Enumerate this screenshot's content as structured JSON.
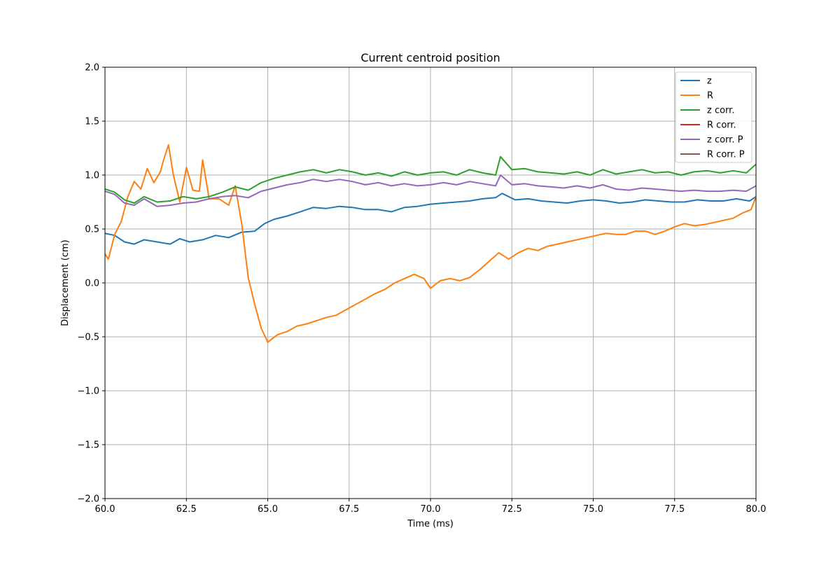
{
  "chart_data": {
    "type": "line",
    "title": "Current centroid position",
    "xlabel": "Time (ms)",
    "ylabel": "Displacement (cm)",
    "xlim": [
      60,
      80
    ],
    "ylim": [
      -2,
      2
    ],
    "x_ticks": [
      60,
      62.5,
      65,
      67.5,
      70,
      72.5,
      75,
      77.5,
      80
    ],
    "x_tick_labels": [
      "60.0",
      "62.5",
      "65.0",
      "67.5",
      "70.0",
      "72.5",
      "75.0",
      "77.5",
      "80.0"
    ],
    "y_ticks": [
      -2,
      -1.5,
      -1,
      -0.5,
      0,
      0.5,
      1,
      1.5,
      2
    ],
    "y_tick_labels": [
      "−2.0",
      "−1.5",
      "−1.0",
      "−0.5",
      "0.0",
      "0.5",
      "1.0",
      "1.5",
      "2.0"
    ],
    "grid": true,
    "legend_position": "top-right",
    "series": [
      {
        "name": "z",
        "color": "#1f77b4",
        "points": [
          [
            60,
            0.46
          ],
          [
            60.3,
            0.44
          ],
          [
            60.6,
            0.38
          ],
          [
            60.9,
            0.36
          ],
          [
            61.2,
            0.4
          ],
          [
            61.6,
            0.38
          ],
          [
            62,
            0.36
          ],
          [
            62.3,
            0.41
          ],
          [
            62.6,
            0.38
          ],
          [
            63,
            0.4
          ],
          [
            63.4,
            0.44
          ],
          [
            63.8,
            0.42
          ],
          [
            64.2,
            0.47
          ],
          [
            64.6,
            0.48
          ],
          [
            64.9,
            0.55
          ],
          [
            65.2,
            0.59
          ],
          [
            65.6,
            0.62
          ],
          [
            66,
            0.66
          ],
          [
            66.4,
            0.7
          ],
          [
            66.8,
            0.69
          ],
          [
            67.2,
            0.71
          ],
          [
            67.6,
            0.7
          ],
          [
            68,
            0.68
          ],
          [
            68.4,
            0.68
          ],
          [
            68.8,
            0.66
          ],
          [
            69.2,
            0.7
          ],
          [
            69.6,
            0.71
          ],
          [
            70,
            0.73
          ],
          [
            70.4,
            0.74
          ],
          [
            70.8,
            0.75
          ],
          [
            71.2,
            0.76
          ],
          [
            71.6,
            0.78
          ],
          [
            72,
            0.79
          ],
          [
            72.2,
            0.83
          ],
          [
            72.6,
            0.77
          ],
          [
            73,
            0.78
          ],
          [
            73.4,
            0.76
          ],
          [
            73.8,
            0.75
          ],
          [
            74.2,
            0.74
          ],
          [
            74.6,
            0.76
          ],
          [
            75,
            0.77
          ],
          [
            75.4,
            0.76
          ],
          [
            75.8,
            0.74
          ],
          [
            76.2,
            0.75
          ],
          [
            76.6,
            0.77
          ],
          [
            77,
            0.76
          ],
          [
            77.4,
            0.75
          ],
          [
            77.8,
            0.75
          ],
          [
            78.2,
            0.77
          ],
          [
            78.6,
            0.76
          ],
          [
            79,
            0.76
          ],
          [
            79.4,
            0.78
          ],
          [
            79.8,
            0.76
          ],
          [
            80,
            0.8
          ]
        ]
      },
      {
        "name": "R",
        "color": "#ff7f0e",
        "points": [
          [
            60,
            0.27
          ],
          [
            60.1,
            0.22
          ],
          [
            60.3,
            0.45
          ],
          [
            60.5,
            0.57
          ],
          [
            60.7,
            0.8
          ],
          [
            60.9,
            0.94
          ],
          [
            61.1,
            0.87
          ],
          [
            61.3,
            1.06
          ],
          [
            61.5,
            0.93
          ],
          [
            61.7,
            1.03
          ],
          [
            61.8,
            1.14
          ],
          [
            61.95,
            1.28
          ],
          [
            62.1,
            1.0
          ],
          [
            62.3,
            0.75
          ],
          [
            62.5,
            1.07
          ],
          [
            62.7,
            0.86
          ],
          [
            62.9,
            0.85
          ],
          [
            63.0,
            1.14
          ],
          [
            63.2,
            0.78
          ],
          [
            63.5,
            0.78
          ],
          [
            63.8,
            0.72
          ],
          [
            64.0,
            0.9
          ],
          [
            64.2,
            0.55
          ],
          [
            64.4,
            0.05
          ],
          [
            64.6,
            -0.2
          ],
          [
            64.8,
            -0.42
          ],
          [
            65.0,
            -0.55
          ],
          [
            65.3,
            -0.48
          ],
          [
            65.6,
            -0.45
          ],
          [
            65.9,
            -0.4
          ],
          [
            66.2,
            -0.38
          ],
          [
            66.5,
            -0.35
          ],
          [
            66.8,
            -0.32
          ],
          [
            67.1,
            -0.3
          ],
          [
            67.4,
            -0.25
          ],
          [
            67.7,
            -0.2
          ],
          [
            68.0,
            -0.15
          ],
          [
            68.3,
            -0.1
          ],
          [
            68.6,
            -0.06
          ],
          [
            68.9,
            0.0
          ],
          [
            69.2,
            0.04
          ],
          [
            69.5,
            0.08
          ],
          [
            69.8,
            0.04
          ],
          [
            70.0,
            -0.05
          ],
          [
            70.3,
            0.02
          ],
          [
            70.6,
            0.04
          ],
          [
            70.9,
            0.02
          ],
          [
            71.2,
            0.05
          ],
          [
            71.5,
            0.12
          ],
          [
            71.8,
            0.2
          ],
          [
            72.1,
            0.28
          ],
          [
            72.4,
            0.22
          ],
          [
            72.7,
            0.28
          ],
          [
            73.0,
            0.32
          ],
          [
            73.3,
            0.3
          ],
          [
            73.6,
            0.34
          ],
          [
            73.9,
            0.36
          ],
          [
            74.2,
            0.38
          ],
          [
            74.5,
            0.4
          ],
          [
            74.8,
            0.42
          ],
          [
            75.1,
            0.44
          ],
          [
            75.4,
            0.46
          ],
          [
            75.7,
            0.45
          ],
          [
            76.0,
            0.45
          ],
          [
            76.3,
            0.48
          ],
          [
            76.6,
            0.48
          ],
          [
            76.9,
            0.45
          ],
          [
            77.2,
            0.48
          ],
          [
            77.5,
            0.52
          ],
          [
            77.8,
            0.55
          ],
          [
            78.1,
            0.53
          ],
          [
            78.4,
            0.54
          ],
          [
            78.7,
            0.56
          ],
          [
            79.0,
            0.58
          ],
          [
            79.3,
            0.6
          ],
          [
            79.6,
            0.65
          ],
          [
            79.85,
            0.68
          ],
          [
            80.0,
            0.8
          ]
        ]
      },
      {
        "name": "z corr.",
        "color": "#2ca02c",
        "points": [
          [
            60,
            0.87
          ],
          [
            60.3,
            0.84
          ],
          [
            60.6,
            0.77
          ],
          [
            60.9,
            0.74
          ],
          [
            61.2,
            0.8
          ],
          [
            61.6,
            0.75
          ],
          [
            62,
            0.76
          ],
          [
            62.4,
            0.8
          ],
          [
            62.8,
            0.78
          ],
          [
            63.2,
            0.8
          ],
          [
            63.6,
            0.84
          ],
          [
            64,
            0.89
          ],
          [
            64.4,
            0.86
          ],
          [
            64.8,
            0.93
          ],
          [
            65.2,
            0.97
          ],
          [
            65.6,
            1.0
          ],
          [
            66,
            1.03
          ],
          [
            66.4,
            1.05
          ],
          [
            66.8,
            1.02
          ],
          [
            67.2,
            1.05
          ],
          [
            67.6,
            1.03
          ],
          [
            68,
            1.0
          ],
          [
            68.4,
            1.02
          ],
          [
            68.8,
            0.99
          ],
          [
            69.2,
            1.03
          ],
          [
            69.6,
            1.0
          ],
          [
            70,
            1.02
          ],
          [
            70.4,
            1.03
          ],
          [
            70.8,
            1.0
          ],
          [
            71.2,
            1.05
          ],
          [
            71.6,
            1.02
          ],
          [
            72,
            1.0
          ],
          [
            72.15,
            1.17
          ],
          [
            72.5,
            1.05
          ],
          [
            72.9,
            1.06
          ],
          [
            73.3,
            1.03
          ],
          [
            73.7,
            1.02
          ],
          [
            74.1,
            1.01
          ],
          [
            74.5,
            1.03
          ],
          [
            74.9,
            1.0
          ],
          [
            75.3,
            1.05
          ],
          [
            75.7,
            1.01
          ],
          [
            76.1,
            1.03
          ],
          [
            76.5,
            1.05
          ],
          [
            76.9,
            1.02
          ],
          [
            77.3,
            1.03
          ],
          [
            77.7,
            1.0
          ],
          [
            78.1,
            1.03
          ],
          [
            78.5,
            1.04
          ],
          [
            78.9,
            1.02
          ],
          [
            79.3,
            1.04
          ],
          [
            79.7,
            1.02
          ],
          [
            80,
            1.1
          ]
        ]
      },
      {
        "name": "R corr.",
        "color": "#d62728",
        "points": []
      },
      {
        "name": "z corr. P",
        "color": "#9467bd",
        "points": [
          [
            60,
            0.85
          ],
          [
            60.3,
            0.82
          ],
          [
            60.6,
            0.74
          ],
          [
            60.9,
            0.72
          ],
          [
            61.2,
            0.78
          ],
          [
            61.6,
            0.71
          ],
          [
            62,
            0.72
          ],
          [
            62.4,
            0.74
          ],
          [
            62.8,
            0.75
          ],
          [
            63.2,
            0.78
          ],
          [
            63.6,
            0.8
          ],
          [
            64,
            0.81
          ],
          [
            64.4,
            0.79
          ],
          [
            64.8,
            0.85
          ],
          [
            65.2,
            0.88
          ],
          [
            65.6,
            0.91
          ],
          [
            66,
            0.93
          ],
          [
            66.4,
            0.96
          ],
          [
            66.8,
            0.94
          ],
          [
            67.2,
            0.96
          ],
          [
            67.6,
            0.94
          ],
          [
            68,
            0.91
          ],
          [
            68.4,
            0.93
          ],
          [
            68.8,
            0.9
          ],
          [
            69.2,
            0.92
          ],
          [
            69.6,
            0.9
          ],
          [
            70,
            0.91
          ],
          [
            70.4,
            0.93
          ],
          [
            70.8,
            0.91
          ],
          [
            71.2,
            0.94
          ],
          [
            71.6,
            0.92
          ],
          [
            72,
            0.9
          ],
          [
            72.15,
            1.0
          ],
          [
            72.5,
            0.91
          ],
          [
            72.9,
            0.92
          ],
          [
            73.3,
            0.9
          ],
          [
            73.7,
            0.89
          ],
          [
            74.1,
            0.88
          ],
          [
            74.5,
            0.9
          ],
          [
            74.9,
            0.88
          ],
          [
            75.3,
            0.91
          ],
          [
            75.7,
            0.87
          ],
          [
            76.1,
            0.86
          ],
          [
            76.5,
            0.88
          ],
          [
            76.9,
            0.87
          ],
          [
            77.3,
            0.86
          ],
          [
            77.7,
            0.85
          ],
          [
            78.1,
            0.86
          ],
          [
            78.5,
            0.85
          ],
          [
            78.9,
            0.85
          ],
          [
            79.3,
            0.86
          ],
          [
            79.7,
            0.85
          ],
          [
            80,
            0.9
          ]
        ]
      },
      {
        "name": "R corr. P",
        "color": "#8c564b",
        "points": []
      }
    ]
  }
}
